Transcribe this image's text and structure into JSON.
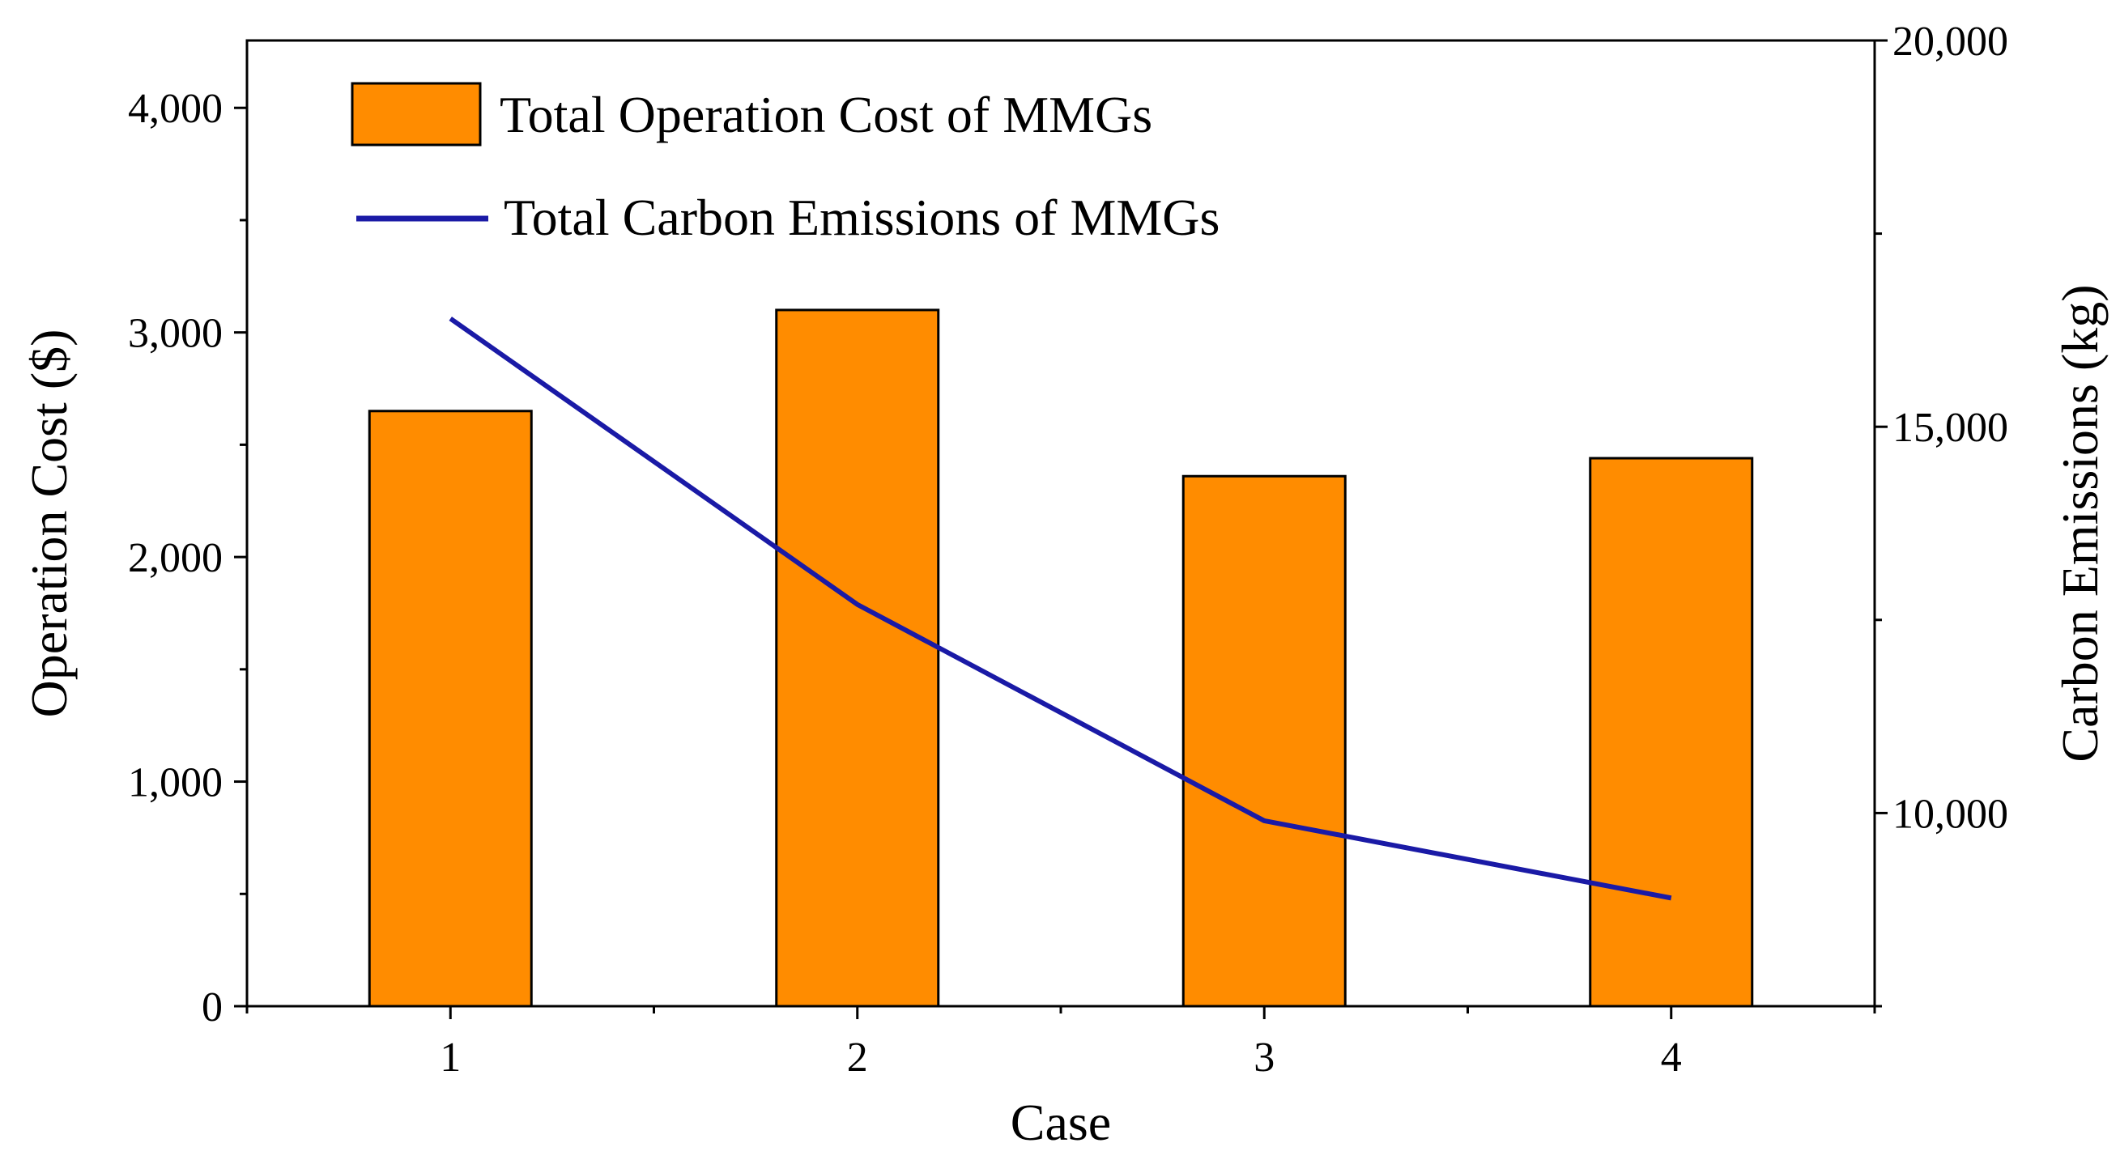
{
  "chart_data": {
    "type": "bar",
    "categories": [
      "1",
      "2",
      "3",
      "4"
    ],
    "xlabel": "Case",
    "ylabel": "Operation Cost ($)",
    "y2label": "Carbon Emissions (kg)",
    "ylim": [
      0,
      4300
    ],
    "y2lim": [
      7500,
      20000
    ],
    "yticks": [
      "0",
      "1,000",
      "2,000",
      "3,000",
      "4,000"
    ],
    "y2ticks": [
      "10,000",
      "15,000",
      "20,000"
    ],
    "series": [
      {
        "name": "Total Operation Cost of MMGs",
        "type": "bar",
        "axis": "left",
        "values": [
          2650,
          3100,
          2360,
          2440
        ],
        "color": "#ff8c00"
      },
      {
        "name": "Total Carbon Emissions of MMGs",
        "type": "line",
        "axis": "right",
        "values": [
          16400,
          12700,
          9900,
          8900
        ],
        "color": "#1a1aa6"
      }
    ],
    "legend_position": "top-left",
    "grid": false
  }
}
